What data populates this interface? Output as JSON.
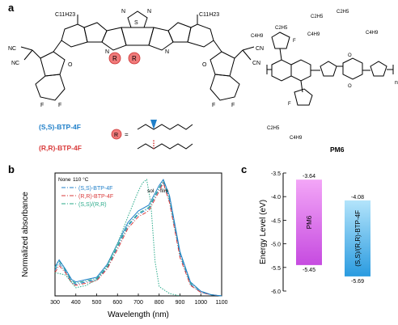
{
  "panel_labels": {
    "a": "a",
    "b": "b",
    "c": "c"
  },
  "panel_a": {
    "molecule_labels": {
      "ss": "(S,S)-BTP-4F",
      "rr": "(R,R)-BTP-4F",
      "r_equals": "=",
      "r_symbol": "R",
      "pm6": "PM6"
    },
    "structure_text": {
      "c11h23": "C11H23",
      "cn": "CN",
      "nc": "NC",
      "o": "O",
      "f": "F",
      "n": "N",
      "s": "S",
      "c2h5": "C2H5",
      "c4h9": "C4H9",
      "n_sub": "n"
    },
    "colors": {
      "ss": "#1f7fc9",
      "rr": "#d93b3b",
      "r_circle": "#f07a7a"
    }
  },
  "panel_b": {
    "annotations": {
      "none": "None",
      "t110": "110 °C",
      "sol": "sol",
      "film": "film"
    },
    "chart_data": {
      "type": "line",
      "xlabel": "Wavelength (nm)",
      "ylabel": "Normalized absorbance",
      "xlim": [
        300,
        1100
      ],
      "xticks": [
        300,
        400,
        500,
        600,
        700,
        800,
        900,
        1000,
        1100
      ],
      "legend_position": "top-left",
      "series": [
        {
          "name": "(S,S)-BTP-4F",
          "color": "#1f7fc9",
          "style": "dashdot",
          "x": [
            300,
            320,
            350,
            380,
            400,
            450,
            500,
            550,
            600,
            650,
            700,
            750,
            800,
            820,
            850,
            900,
            950,
            1000,
            1050,
            1100
          ],
          "y": [
            0.22,
            0.28,
            0.21,
            0.12,
            0.1,
            0.12,
            0.14,
            0.24,
            0.42,
            0.6,
            0.7,
            0.75,
            0.92,
            0.98,
            0.82,
            0.35,
            0.1,
            0.03,
            0.01,
            0.0
          ]
        },
        {
          "name": "(R,R)-BTP-4F",
          "color": "#d93b3b",
          "style": "dashdot",
          "x": [
            300,
            320,
            350,
            380,
            400,
            450,
            500,
            550,
            600,
            650,
            700,
            750,
            800,
            820,
            850,
            900,
            950,
            1000,
            1050,
            1100
          ],
          "y": [
            0.2,
            0.26,
            0.2,
            0.11,
            0.09,
            0.11,
            0.13,
            0.23,
            0.4,
            0.58,
            0.68,
            0.73,
            0.9,
            0.97,
            0.8,
            0.33,
            0.09,
            0.03,
            0.01,
            0.0
          ]
        },
        {
          "name": "(S,S)/(R,R)",
          "color": "#2aaa8a",
          "style": "dashdot",
          "x": [
            300,
            320,
            350,
            380,
            400,
            450,
            500,
            550,
            600,
            650,
            700,
            750,
            800,
            820,
            850,
            900,
            950,
            1000,
            1050,
            1100
          ],
          "y": [
            0.24,
            0.3,
            0.22,
            0.13,
            0.11,
            0.13,
            0.15,
            0.25,
            0.43,
            0.61,
            0.71,
            0.76,
            0.93,
            0.99,
            0.84,
            0.37,
            0.11,
            0.04,
            0.01,
            0.0
          ]
        },
        {
          "name": "",
          "color": "#1f7fc9",
          "style": "solid",
          "x": [
            300,
            320,
            350,
            380,
            400,
            450,
            500,
            550,
            600,
            650,
            700,
            750,
            800,
            820,
            850,
            900,
            950,
            1000,
            1050,
            1100
          ],
          "y": [
            0.25,
            0.31,
            0.23,
            0.14,
            0.12,
            0.14,
            0.16,
            0.27,
            0.45,
            0.63,
            0.73,
            0.78,
            0.95,
            1.0,
            0.86,
            0.38,
            0.12,
            0.04,
            0.01,
            0.0
          ]
        },
        {
          "name": "",
          "color": "#2aaa8a",
          "style": "dotted",
          "x": [
            300,
            350,
            400,
            450,
            500,
            550,
            600,
            650,
            700,
            720,
            740,
            760,
            780,
            800,
            850,
            900
          ],
          "y": [
            0.2,
            0.18,
            0.07,
            0.09,
            0.14,
            0.26,
            0.45,
            0.68,
            0.9,
            0.97,
            1.0,
            0.8,
            0.3,
            0.08,
            0.02,
            0.0
          ]
        }
      ]
    }
  },
  "panel_c": {
    "chart_data": {
      "type": "bar",
      "ylabel": "Energy Level (eV)",
      "ylim": [
        -6.0,
        -3.5
      ],
      "yticks": [
        -3.5,
        -4.0,
        -4.5,
        -5.0,
        -5.5,
        -6.0
      ],
      "bars": [
        {
          "name": "PM6",
          "lumo": -3.64,
          "homo": -5.45,
          "lumo_label": "-3.64",
          "homo_label": "-5.45",
          "color_top": "#f3a6f7",
          "color_bottom": "#c64be0"
        },
        {
          "name": "(S,S)/(R,R)-BTP-4F",
          "lumo": -4.08,
          "homo": -5.69,
          "lumo_label": "-4.08",
          "homo_label": "-5.69",
          "color_top": "#b3e4fb",
          "color_bottom": "#2a9be0"
        }
      ]
    }
  }
}
